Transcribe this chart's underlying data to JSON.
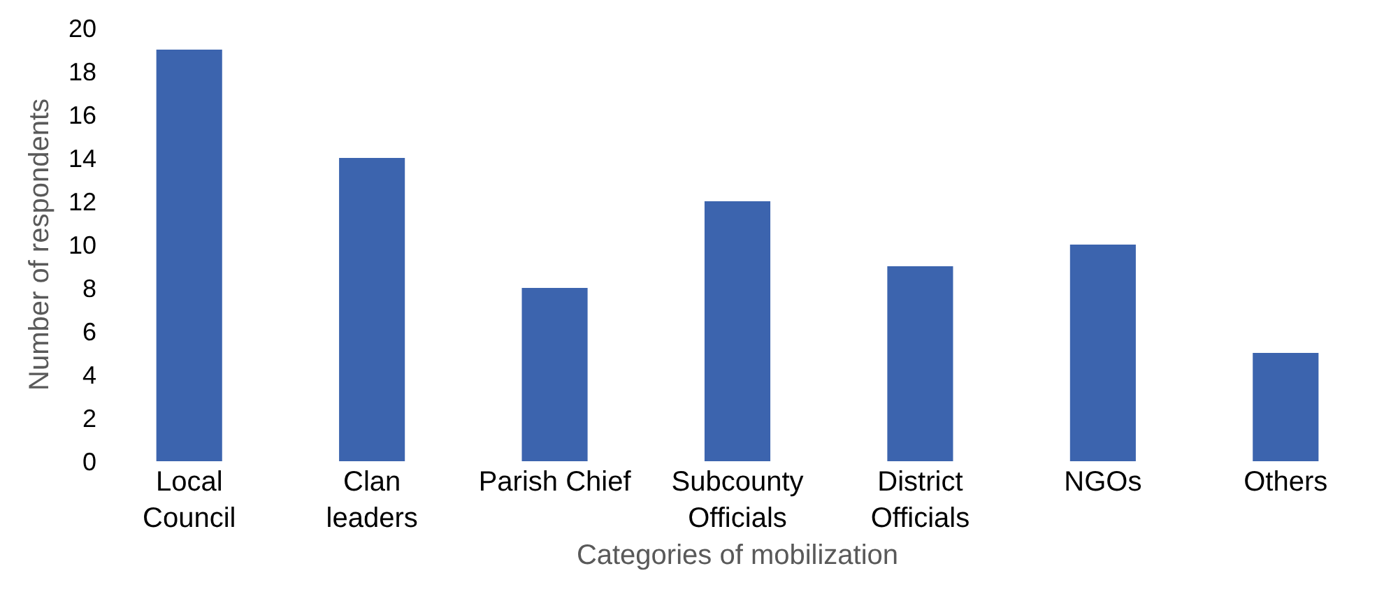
{
  "chart_data": {
    "type": "bar",
    "categories": [
      "Local\nCouncil",
      "Clan\nleaders",
      "Parish Chief",
      "Subcounty\nOfficials",
      "District\nOfficials",
      "NGOs",
      "Others"
    ],
    "values": [
      19,
      14,
      8,
      12,
      9,
      10,
      5
    ],
    "color": "#3c64ae",
    "xlabel": "Categories of mobilization",
    "ylabel": "Number of respondents",
    "ylim": [
      0,
      20
    ],
    "yticks": [
      0,
      2,
      4,
      6,
      8,
      10,
      12,
      14,
      16,
      18,
      20
    ],
    "legend": false
  }
}
